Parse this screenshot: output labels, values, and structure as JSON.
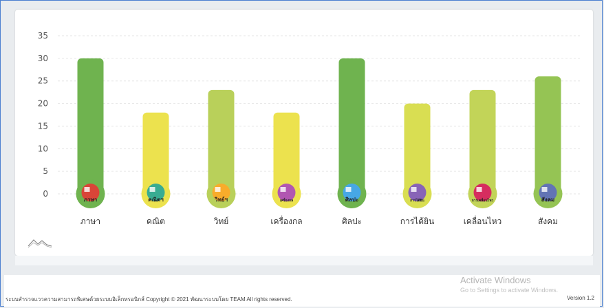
{
  "chart_data": {
    "type": "bar",
    "categories": [
      "ภาษา",
      "คณิต",
      "วิทย์",
      "เครื่องกล",
      "ศิลปะ",
      "การได้ยิน",
      "เคลื่อนไหว",
      "สังคม"
    ],
    "icon_labels": [
      "ภาษา",
      "คณิตฯ",
      "วิทย์ฯ",
      "เครื่องกล",
      "ศิลปะ",
      "การได้ยิน",
      "การเคลื่อนไหว",
      "สังคม"
    ],
    "values": [
      30,
      18,
      23,
      18,
      30,
      20,
      23,
      26
    ],
    "ylim": [
      0,
      35
    ],
    "yticks": [
      0,
      5,
      10,
      15,
      20,
      25,
      30,
      35
    ],
    "grid": true,
    "bar_colors": [
      "#6fb34f",
      "#ece24e",
      "#b9d05a",
      "#ece24e",
      "#6fb34f",
      "#d9de52",
      "#c2d458",
      "#95c454"
    ],
    "icon_colors": [
      "#e53935",
      "#26a69a",
      "#ffa726",
      "#ab47bc",
      "#42a5f5",
      "#7e57c2",
      "#d81b60",
      "#5c6bc0"
    ]
  },
  "footer": {
    "copyright": "ระบบสำรวจแววความสามารถพิเศษด้วยระบบอิเล็กทรอนิกส์ Copyright © 2021 พัฒนาระบบโดย TEAM All rights reserved.",
    "version": "Version 1.2"
  },
  "watermark": {
    "title": "Activate Windows",
    "subtitle": "Go to Settings to activate Windows."
  }
}
